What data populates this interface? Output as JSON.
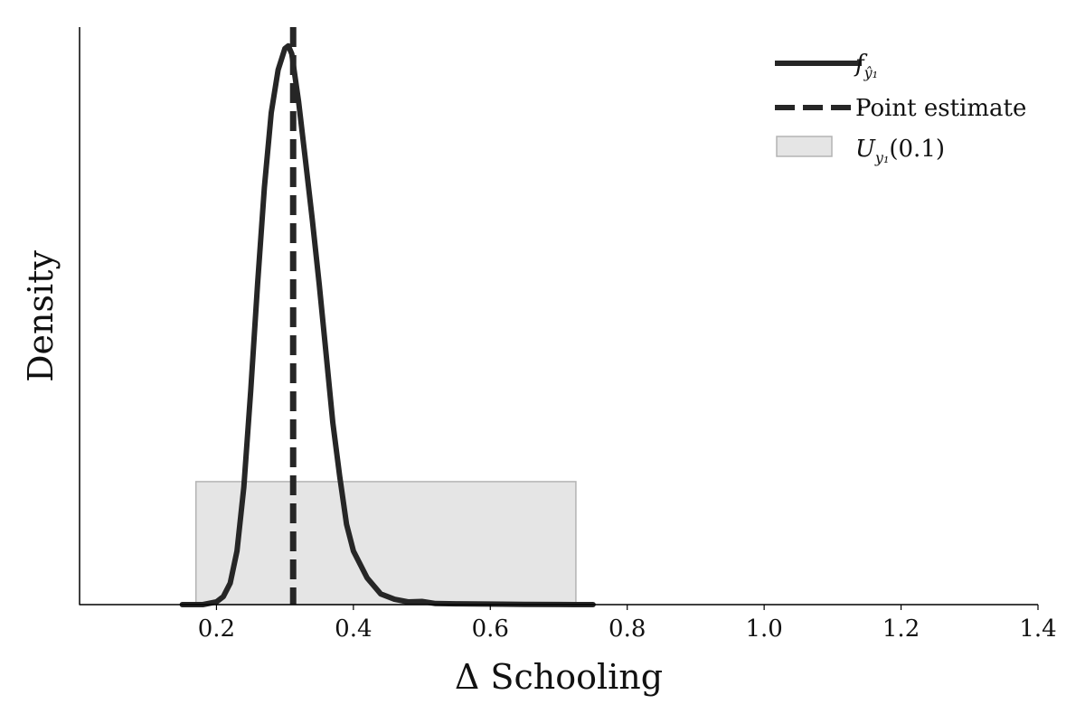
{
  "chart_data": {
    "type": "area",
    "xlabel": "Δ Schooling",
    "ylabel": "Density",
    "xlim": [
      0.0,
      1.4
    ],
    "ylim": [
      0,
      1.08
    ],
    "x_ticks": [
      0.2,
      0.4,
      0.6,
      0.8,
      1.0,
      1.2,
      1.4
    ],
    "x_tick_labels": [
      "0.2",
      "0.4",
      "0.6",
      "0.8",
      "1.0",
      "1.2",
      "1.4"
    ],
    "density_curve": {
      "x": [
        0.15,
        0.18,
        0.2,
        0.21,
        0.22,
        0.23,
        0.24,
        0.25,
        0.26,
        0.27,
        0.28,
        0.29,
        0.3,
        0.305,
        0.31,
        0.32,
        0.33,
        0.34,
        0.35,
        0.36,
        0.37,
        0.38,
        0.39,
        0.4,
        0.42,
        0.44,
        0.46,
        0.48,
        0.5,
        0.52,
        0.55,
        0.6,
        0.65,
        0.7,
        0.75
      ],
      "y": [
        0.0,
        0.0,
        0.005,
        0.015,
        0.04,
        0.1,
        0.22,
        0.4,
        0.6,
        0.78,
        0.92,
        1.0,
        1.04,
        1.045,
        1.03,
        0.94,
        0.83,
        0.72,
        0.6,
        0.47,
        0.34,
        0.24,
        0.15,
        0.1,
        0.05,
        0.02,
        0.01,
        0.005,
        0.006,
        0.002,
        0.0015,
        0.001,
        0.0005,
        0.0002,
        0.0
      ]
    },
    "point_estimate": 0.312,
    "interval": {
      "x_min": 0.17,
      "x_max": 0.725,
      "height": 0.23
    },
    "legend": {
      "position": "top-right",
      "entries": [
        {
          "label_main": "f",
          "label_sub": "ŷ₁",
          "style": "solid-line"
        },
        {
          "label": "Point estimate",
          "style": "dashed-line"
        },
        {
          "label_main": "U",
          "label_sub": "y₁",
          "label_suffix": "(0.1)",
          "style": "shaded-box"
        }
      ]
    },
    "grid": false,
    "colors": {
      "line": "#262626",
      "interval_fill": "#e5e5e5",
      "interval_edge": "#b3b3b3"
    }
  }
}
